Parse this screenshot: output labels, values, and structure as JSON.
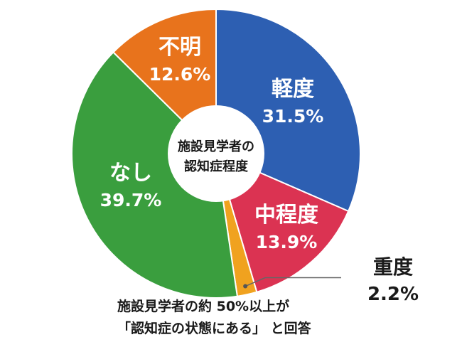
{
  "chart_data": {
    "type": "pie",
    "style": "donut",
    "center_label": [
      "施設見学者の",
      "認知症程度"
    ],
    "slices": [
      {
        "label": "軽度",
        "value": 31.5,
        "value_text": "31.5%",
        "color": "#2d5fb2"
      },
      {
        "label": "中程度",
        "value": 13.9,
        "value_text": "13.9%",
        "color": "#db3352"
      },
      {
        "label": "重度",
        "value": 2.2,
        "value_text": "2.2%",
        "color": "#f0a21f"
      },
      {
        "label": "なし",
        "value": 39.7,
        "value_text": "39.7%",
        "color": "#3a9e3e"
      },
      {
        "label": "不明",
        "value": 12.6,
        "value_text": "12.6%",
        "color": "#e8731c"
      }
    ]
  },
  "caption": {
    "line1": "施設見学者の約 50%以上が",
    "line2": "「認知症の状態にある」 と回答"
  }
}
